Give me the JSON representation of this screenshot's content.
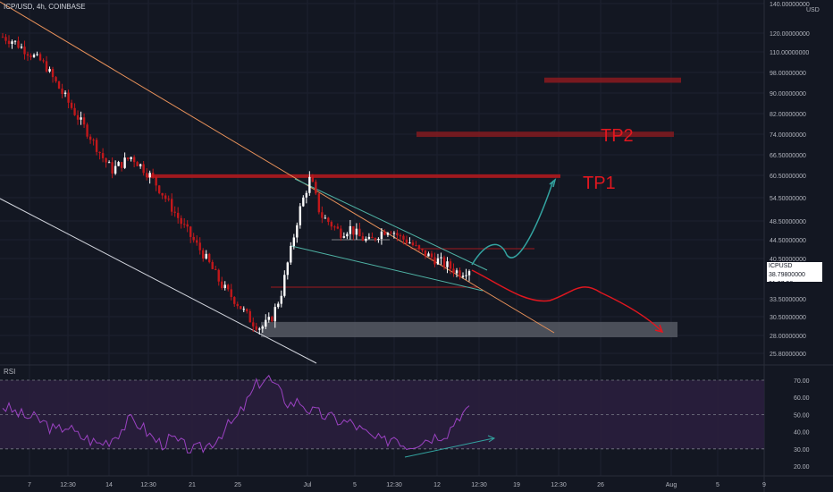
{
  "header": {
    "title": "ICP/USD, 4h, COINBASE",
    "currency": "USD"
  },
  "price_label": {
    "symbol": "ICPUSD",
    "price": "38.79800000",
    "countdown": "01:27:58"
  },
  "annotations": {
    "tp1": "TP1",
    "tp2": "TP2"
  },
  "rsi": {
    "label": "RSI",
    "levels": [
      "70.00",
      "60.00",
      "50.00",
      "40.00",
      "30.00",
      "20.00"
    ]
  },
  "colors": {
    "background": "#131722",
    "up": "#ffffff",
    "down": "#c2181b",
    "tp_zone": "#8b1a1f",
    "rsi_line": "#9b42c2",
    "rsi_band": "#2a1e3d",
    "trend_orange": "#e8915a",
    "trend_teal": "#4fb3a5",
    "projection_up": "#33a3a0",
    "projection_down": "#e0171f"
  },
  "chart_data": {
    "type": "candlestick",
    "y_axis_ticks": [
      "140.00000000",
      "120.00000000",
      "110.00000000",
      "98.00000000",
      "90.00000000",
      "82.00000000",
      "74.00000000",
      "66.50000000",
      "60.50000000",
      "54.50000000",
      "48.50000000",
      "44.50000000",
      "40.50000000",
      "33.50000000",
      "30.50000000",
      "28.00000000",
      "25.80000000"
    ],
    "x_axis_ticks": [
      "7",
      "12:30",
      "14",
      "12:30",
      "21",
      "25",
      "Jul",
      "5",
      "12:30",
      "12",
      "12:30",
      "19",
      "12:30",
      "26",
      "Aug",
      "5",
      "9"
    ],
    "ylim": [
      24.5,
      142
    ],
    "close_path": [
      118,
      116,
      112,
      108,
      104,
      96,
      90,
      84,
      78,
      72,
      66,
      62,
      64,
      66,
      63,
      60,
      56,
      52,
      48,
      45,
      42,
      39,
      36,
      34,
      32,
      30,
      29,
      30,
      34,
      42,
      52,
      60,
      50,
      48,
      46,
      47,
      45,
      44,
      46,
      47,
      45,
      44,
      42,
      41,
      40,
      39,
      38,
      38.8
    ],
    "tp_zones": [
      {
        "label": "",
        "low": 94,
        "high": 96
      },
      {
        "label": "TP2",
        "low": 73,
        "high": 75
      },
      {
        "label": "TP1",
        "low": 59.8,
        "high": 60.6
      }
    ],
    "support_zone": {
      "low": 28,
      "high": 29.8
    },
    "rsi_path": [
      55,
      52,
      49,
      48,
      45,
      40,
      44,
      38,
      36,
      33,
      35,
      40,
      47,
      44,
      37,
      33,
      36,
      32,
      29,
      31,
      35,
      42,
      47,
      57,
      68,
      72,
      64,
      56,
      58,
      52,
      50,
      48,
      46,
      45,
      40,
      36,
      34,
      38,
      32,
      34,
      36,
      38,
      40,
      50,
      52
    ]
  }
}
